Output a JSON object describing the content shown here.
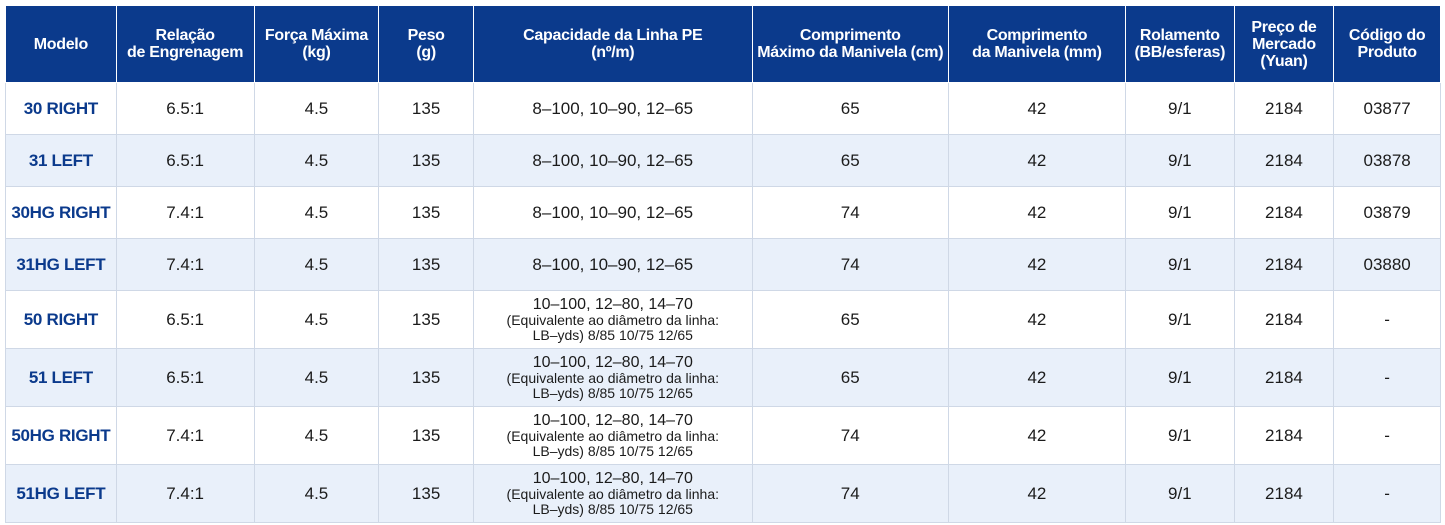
{
  "headers": [
    "Modelo",
    "Relação\nde Engrenagem",
    "Força Máxima\n(kg)",
    "Peso\n(g)",
    "Capacidade da Linha PE\n(nº/m)",
    "Comprimento\nMáximo da Manivela (cm)",
    "Comprimento\nda Manivela (mm)",
    "Rolamento\n(BB/esferas)",
    "Preço de\nMercado\n(Yuan)",
    "Código do\nProduto"
  ],
  "rows": [
    {
      "model": "30 RIGHT",
      "gear": "6.5:1",
      "force": "4.5",
      "weight": "135",
      "capacity": "8–100, 10–90, 12–65",
      "capacity_note": "",
      "max_crank": "65",
      "crank": "42",
      "bearing": "9/1",
      "price": "2184",
      "code": "03877"
    },
    {
      "model": "31 LEFT",
      "gear": "6.5:1",
      "force": "4.5",
      "weight": "135",
      "capacity": "8–100, 10–90, 12–65",
      "capacity_note": "",
      "max_crank": "65",
      "crank": "42",
      "bearing": "9/1",
      "price": "2184",
      "code": "03878"
    },
    {
      "model": "30HG RIGHT",
      "gear": "7.4:1",
      "force": "4.5",
      "weight": "135",
      "capacity": "8–100, 10–90, 12–65",
      "capacity_note": "",
      "max_crank": "74",
      "crank": "42",
      "bearing": "9/1",
      "price": "2184",
      "code": "03879"
    },
    {
      "model": "31HG LEFT",
      "gear": "7.4:1",
      "force": "4.5",
      "weight": "135",
      "capacity": "8–100, 10–90, 12–65",
      "capacity_note": "",
      "max_crank": "74",
      "crank": "42",
      "bearing": "9/1",
      "price": "2184",
      "code": "03880"
    },
    {
      "model": "50 RIGHT",
      "gear": "6.5:1",
      "force": "4.5",
      "weight": "135",
      "capacity": "10–100, 12–80, 14–70",
      "capacity_note": "(Equivalente ao diâmetro da linha:\nLB–yds) 8/85 10/75 12/65",
      "max_crank": "65",
      "crank": "42",
      "bearing": "9/1",
      "price": "2184",
      "code": "-"
    },
    {
      "model": "51 LEFT",
      "gear": "6.5:1",
      "force": "4.5",
      "weight": "135",
      "capacity": "10–100, 12–80, 14–70",
      "capacity_note": "(Equivalente ao diâmetro da linha:\nLB–yds) 8/85 10/75 12/65",
      "max_crank": "65",
      "crank": "42",
      "bearing": "9/1",
      "price": "2184",
      "code": "-"
    },
    {
      "model": "50HG RIGHT",
      "gear": "7.4:1",
      "force": "4.5",
      "weight": "135",
      "capacity": "10–100, 12–80, 14–70",
      "capacity_note": "(Equivalente ao diâmetro da linha:\nLB–yds) 8/85 10/75 12/65",
      "max_crank": "74",
      "crank": "42",
      "bearing": "9/1",
      "price": "2184",
      "code": "-"
    },
    {
      "model": "51HG LEFT",
      "gear": "7.4:1",
      "force": "4.5",
      "weight": "135",
      "capacity": "10–100, 12–80, 14–70",
      "capacity_note": "(Equivalente ao diâmetro da linha:\nLB–yds) 8/85 10/75 12/65",
      "max_crank": "74",
      "crank": "42",
      "bearing": "9/1",
      "price": "2184",
      "code": "-"
    }
  ]
}
